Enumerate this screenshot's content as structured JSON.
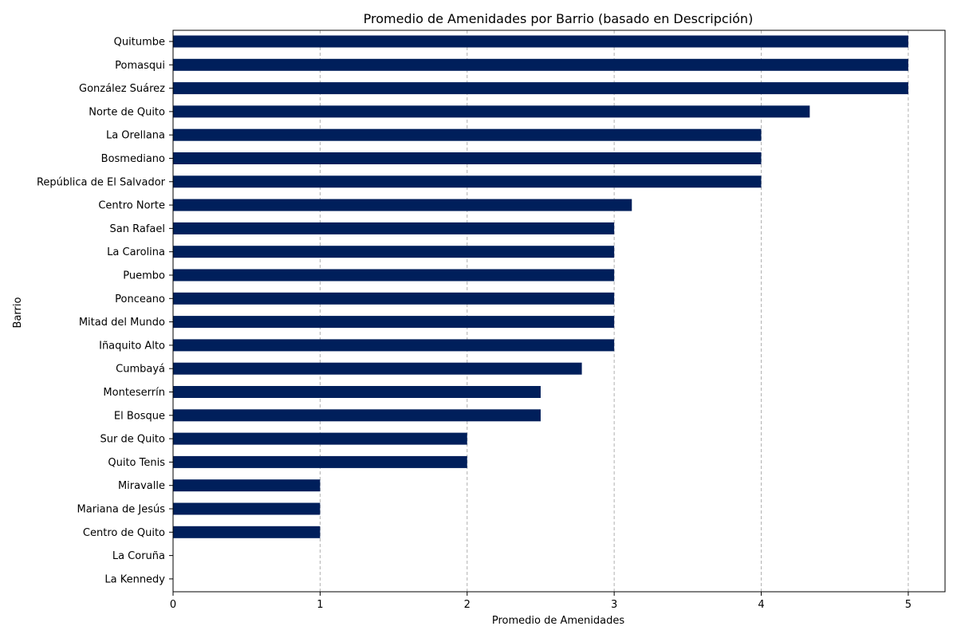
{
  "chart_data": {
    "type": "bar",
    "orientation": "horizontal",
    "title": "Promedio de Amenidades por Barrio (basado en Descripción)",
    "xlabel": "Promedio de Amenidades",
    "ylabel": "Barrio",
    "xlim": [
      0,
      5.25
    ],
    "xticks": [
      0,
      1,
      2,
      3,
      4,
      5
    ],
    "grid": "x-dashed",
    "bar_color": "#001f5b",
    "categories": [
      "Quitumbe",
      "Pomasqui",
      "González Suárez",
      "Norte de Quito",
      "La Orellana",
      "Bosmediano",
      "República de El Salvador",
      "Centro Norte",
      "San Rafael",
      "La Carolina",
      "Puembo",
      "Ponceano",
      "Mitad del Mundo",
      "Iñaquito Alto",
      "Cumbayá",
      "Monteserrín",
      "El Bosque",
      "Sur de Quito",
      "Quito Tenis",
      "Miravalle",
      "Mariana de Jesús",
      "Centro de Quito",
      "La Coruña",
      "La Kennedy"
    ],
    "values": [
      5,
      5,
      5,
      4.33,
      4,
      4,
      4,
      3.12,
      3,
      3,
      3,
      3,
      3,
      3,
      2.78,
      2.5,
      2.5,
      2,
      2,
      1,
      1,
      1,
      0,
      0
    ]
  }
}
